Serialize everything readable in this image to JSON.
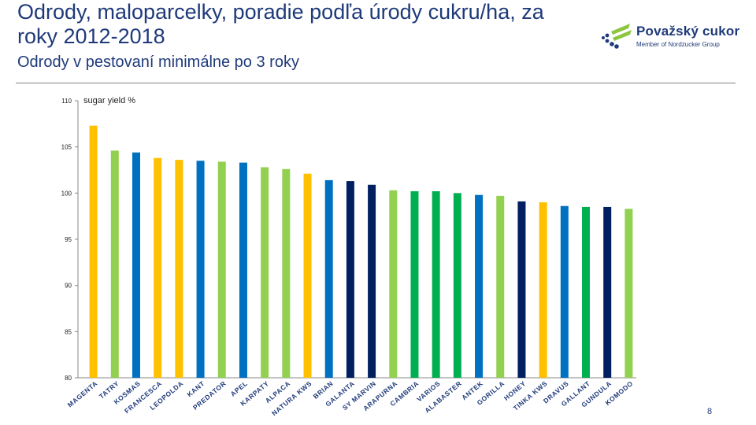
{
  "header": {
    "title": "Odrody, maloparcelky, poradie podľa úrody cukru/ha, za roky 2012-2018",
    "subtitle": "Odrody v pestovaní minimálne po 3 roky"
  },
  "logo": {
    "name": "Považský cukor",
    "tagline": "Member of Nordzucker Group",
    "colors": {
      "blue": "#1f3a7a",
      "green": "#8cc63f"
    }
  },
  "page": {
    "number": "8"
  },
  "chart_data": {
    "type": "bar",
    "title": "",
    "ylabel": "sugar yield %",
    "xlabel": "",
    "ylim": [
      80,
      110
    ],
    "yticks": [
      80,
      85,
      90,
      95,
      100,
      105,
      110
    ],
    "grid": false,
    "legend": "none",
    "categories": [
      "MAGENTA",
      "TATRY",
      "KOSMAS",
      "FRANCESCA",
      "LEOPOLDA",
      "KANT",
      "PREDATOR",
      "APEL",
      "KARPATY",
      "ALPACA",
      "NATURA KWS",
      "BRIAN",
      "GALANTA",
      "SY MARVIN",
      "ARAPURNA",
      "CAMBRIA",
      "VARIOS",
      "ALABASTER",
      "ANTEK",
      "GORILLA",
      "HONEY",
      "TINKA KWS",
      "DRAVUS",
      "GALLANT",
      "GUNDULA",
      "KOMODO"
    ],
    "values": [
      107.3,
      104.6,
      104.4,
      103.8,
      103.6,
      103.5,
      103.4,
      103.3,
      102.8,
      102.6,
      102.1,
      101.4,
      101.3,
      100.9,
      100.3,
      100.2,
      100.2,
      100.0,
      99.8,
      99.7,
      99.1,
      99.0,
      98.6,
      98.5,
      98.5,
      98.3
    ],
    "colors": [
      "#ffc000",
      "#92d050",
      "#0070c0",
      "#ffc000",
      "#ffc000",
      "#0070c0",
      "#92d050",
      "#0070c0",
      "#92d050",
      "#92d050",
      "#ffc000",
      "#0070c0",
      "#002060",
      "#002060",
      "#92d050",
      "#00b050",
      "#00b050",
      "#00b050",
      "#0070c0",
      "#92d050",
      "#002060",
      "#ffc000",
      "#0070c0",
      "#00b050",
      "#002060",
      "#92d050"
    ]
  }
}
